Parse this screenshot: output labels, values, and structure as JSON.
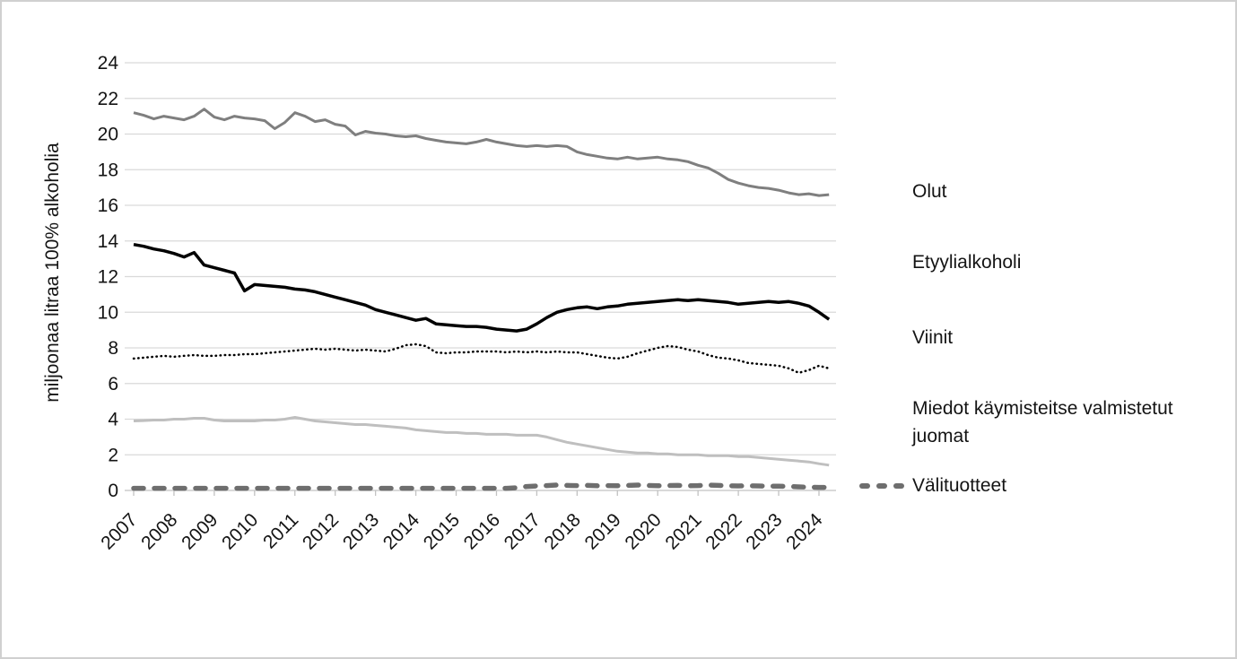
{
  "chart_data": {
    "type": "line",
    "title": "",
    "xlabel": "",
    "ylabel": "miljoonaa litraa 100% alkoholia",
    "ylim": [
      0,
      24
    ],
    "y_ticks": [
      0,
      2,
      4,
      6,
      8,
      10,
      12,
      14,
      16,
      18,
      20,
      22,
      24
    ],
    "x_tick_labels": [
      "2007",
      "2008",
      "2009",
      "2010",
      "2011",
      "2012",
      "2013",
      "2014",
      "2015",
      "2016",
      "2017",
      "2018",
      "2019",
      "2020",
      "2021",
      "2022",
      "2023",
      "2024"
    ],
    "grid": "horizontal",
    "legend_position": "right",
    "x": [
      2007.0,
      2007.25,
      2007.5,
      2007.75,
      2008.0,
      2008.25,
      2008.5,
      2008.75,
      2009.0,
      2009.25,
      2009.5,
      2009.75,
      2010.0,
      2010.25,
      2010.5,
      2010.75,
      2011.0,
      2011.25,
      2011.5,
      2011.75,
      2012.0,
      2012.25,
      2012.5,
      2012.75,
      2013.0,
      2013.25,
      2013.5,
      2013.75,
      2014.0,
      2014.25,
      2014.5,
      2014.75,
      2015.0,
      2015.25,
      2015.5,
      2015.75,
      2016.0,
      2016.25,
      2016.5,
      2016.75,
      2017.0,
      2017.25,
      2017.5,
      2017.75,
      2018.0,
      2018.25,
      2018.5,
      2018.75,
      2019.0,
      2019.25,
      2019.5,
      2019.75,
      2020.0,
      2020.25,
      2020.5,
      2020.75,
      2021.0,
      2021.25,
      2021.5,
      2021.75,
      2022.0,
      2022.25,
      2022.5,
      2022.75,
      2023.0,
      2023.25,
      2023.5,
      2023.75,
      2024.0,
      2024.25
    ],
    "series": [
      {
        "name": "Olut",
        "style": "solid",
        "color": "#7f7f7f",
        "width": 3,
        "values": [
          21.2,
          21.05,
          20.85,
          21.0,
          20.9,
          20.8,
          21.0,
          21.4,
          20.95,
          20.8,
          21.0,
          20.9,
          20.85,
          20.75,
          20.3,
          20.65,
          21.2,
          21.0,
          20.7,
          20.8,
          20.55,
          20.45,
          19.95,
          20.15,
          20.05,
          20.0,
          19.9,
          19.85,
          19.9,
          19.75,
          19.65,
          19.55,
          19.5,
          19.45,
          19.55,
          19.7,
          19.55,
          19.45,
          19.35,
          19.3,
          19.35,
          19.3,
          19.35,
          19.3,
          19.0,
          18.85,
          18.75,
          18.65,
          18.6,
          18.7,
          18.6,
          18.65,
          18.7,
          18.6,
          18.55,
          18.45,
          18.25,
          18.1,
          17.8,
          17.45,
          17.25,
          17.1,
          17.0,
          16.95,
          16.85,
          16.7,
          16.6,
          16.65,
          16.55,
          16.6
        ]
      },
      {
        "name": "Etyylialkoholi",
        "style": "solid",
        "color": "#000000",
        "width": 3.5,
        "values": [
          13.8,
          13.7,
          13.55,
          13.45,
          13.3,
          13.1,
          13.35,
          12.65,
          12.5,
          12.35,
          12.2,
          11.2,
          11.55,
          11.5,
          11.45,
          11.4,
          11.3,
          11.25,
          11.15,
          11.0,
          10.85,
          10.7,
          10.55,
          10.4,
          10.15,
          10.0,
          9.85,
          9.7,
          9.55,
          9.65,
          9.35,
          9.3,
          9.25,
          9.2,
          9.2,
          9.15,
          9.05,
          9.0,
          8.95,
          9.05,
          9.35,
          9.7,
          10.0,
          10.15,
          10.25,
          10.3,
          10.2,
          10.3,
          10.35,
          10.45,
          10.5,
          10.55,
          10.6,
          10.65,
          10.7,
          10.65,
          10.7,
          10.65,
          10.6,
          10.55,
          10.45,
          10.5,
          10.55,
          10.6,
          10.55,
          10.6,
          10.5,
          10.35,
          10.0,
          9.6
        ]
      },
      {
        "name": "Viinit",
        "style": "dotted",
        "color": "#000000",
        "width": 2.5,
        "values": [
          7.4,
          7.45,
          7.5,
          7.55,
          7.5,
          7.55,
          7.6,
          7.55,
          7.55,
          7.6,
          7.6,
          7.65,
          7.65,
          7.7,
          7.75,
          7.8,
          7.85,
          7.9,
          7.95,
          7.9,
          7.95,
          7.9,
          7.85,
          7.9,
          7.85,
          7.8,
          7.95,
          8.15,
          8.2,
          8.1,
          7.75,
          7.7,
          7.75,
          7.75,
          7.8,
          7.8,
          7.8,
          7.75,
          7.8,
          7.75,
          7.8,
          7.75,
          7.8,
          7.75,
          7.75,
          7.65,
          7.55,
          7.45,
          7.4,
          7.5,
          7.7,
          7.85,
          8.0,
          8.1,
          8.05,
          7.9,
          7.8,
          7.6,
          7.45,
          7.4,
          7.3,
          7.15,
          7.1,
          7.05,
          7.0,
          6.85,
          6.6,
          6.75,
          7.0,
          6.85
        ]
      },
      {
        "name": "Miedot käymisteitse valmistetut juomat",
        "style": "solid",
        "color": "#bfbfbf",
        "width": 3,
        "values": [
          3.9,
          3.92,
          3.95,
          3.95,
          4.0,
          4.0,
          4.05,
          4.05,
          3.95,
          3.9,
          3.9,
          3.9,
          3.9,
          3.95,
          3.95,
          4.0,
          4.1,
          4.0,
          3.9,
          3.85,
          3.8,
          3.75,
          3.7,
          3.7,
          3.65,
          3.6,
          3.55,
          3.5,
          3.4,
          3.35,
          3.3,
          3.25,
          3.25,
          3.2,
          3.2,
          3.15,
          3.15,
          3.15,
          3.1,
          3.1,
          3.1,
          3.0,
          2.85,
          2.7,
          2.6,
          2.5,
          2.4,
          2.3,
          2.2,
          2.15,
          2.1,
          2.1,
          2.05,
          2.05,
          2.0,
          2.0,
          2.0,
          1.95,
          1.95,
          1.95,
          1.9,
          1.9,
          1.85,
          1.8,
          1.75,
          1.7,
          1.65,
          1.6,
          1.5,
          1.42
        ]
      },
      {
        "name": "Välituotteet",
        "style": "dashed",
        "color": "#6e6e6e",
        "width": 5.5,
        "values": [
          0.12,
          0.12,
          0.12,
          0.12,
          0.12,
          0.12,
          0.12,
          0.12,
          0.12,
          0.12,
          0.12,
          0.12,
          0.12,
          0.12,
          0.12,
          0.12,
          0.12,
          0.12,
          0.12,
          0.12,
          0.12,
          0.12,
          0.12,
          0.12,
          0.12,
          0.12,
          0.12,
          0.12,
          0.12,
          0.12,
          0.12,
          0.12,
          0.12,
          0.12,
          0.12,
          0.12,
          0.12,
          0.12,
          0.15,
          0.22,
          0.25,
          0.27,
          0.3,
          0.28,
          0.27,
          0.28,
          0.26,
          0.27,
          0.26,
          0.28,
          0.3,
          0.28,
          0.26,
          0.27,
          0.28,
          0.26,
          0.27,
          0.3,
          0.28,
          0.26,
          0.25,
          0.26,
          0.25,
          0.24,
          0.24,
          0.22,
          0.2,
          0.18,
          0.17,
          0.17
        ]
      }
    ],
    "colors": {
      "gridline": "#d9d9d9",
      "axis": "#c2c2c2",
      "text": "#141414"
    }
  }
}
